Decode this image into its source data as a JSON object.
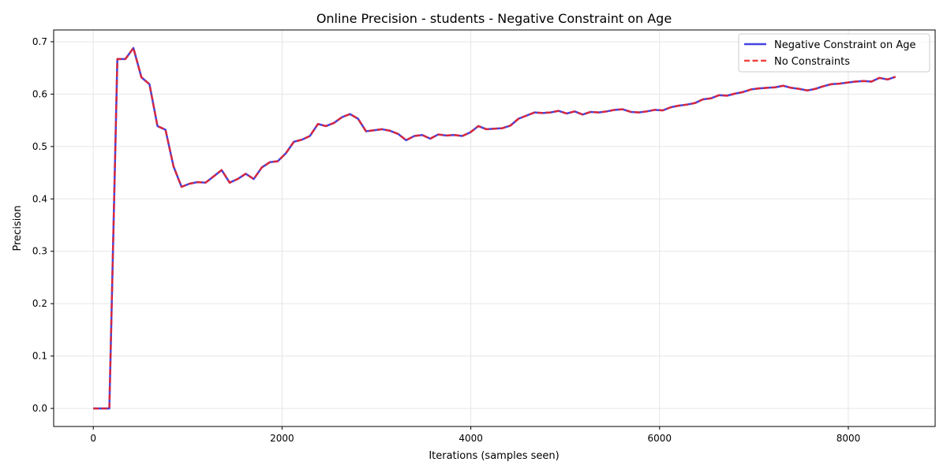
{
  "chart_data": {
    "type": "line",
    "title": "Online Precision - students - Negative Constraint on Age",
    "xlabel": "Iterations (samples seen)",
    "ylabel": "Precision",
    "xlim": [
      -420,
      8920
    ],
    "ylim": [
      -0.0345,
      0.7225
    ],
    "xticks": [
      0,
      2000,
      4000,
      6000,
      8000
    ],
    "xtick_labels": [
      "0",
      "2000",
      "4000",
      "6000",
      "8000"
    ],
    "yticks": [
      0.0,
      0.1,
      0.2,
      0.3,
      0.4,
      0.5,
      0.6,
      0.7
    ],
    "ytick_labels": [
      "0.0",
      "0.1",
      "0.2",
      "0.3",
      "0.4",
      "0.5",
      "0.6",
      "0.7"
    ],
    "grid": true,
    "legend_position": "top-right",
    "x": [
      0,
      85,
      170,
      255,
      340,
      425,
      510,
      595,
      680,
      765,
      850,
      935,
      1020,
      1105,
      1190,
      1275,
      1360,
      1445,
      1530,
      1615,
      1700,
      1785,
      1870,
      1955,
      2040,
      2125,
      2210,
      2295,
      2380,
      2465,
      2550,
      2635,
      2720,
      2805,
      2890,
      2975,
      3060,
      3145,
      3230,
      3315,
      3400,
      3485,
      3570,
      3655,
      3740,
      3825,
      3910,
      3995,
      4080,
      4165,
      4250,
      4335,
      4420,
      4505,
      4590,
      4675,
      4760,
      4845,
      4930,
      5015,
      5100,
      5185,
      5270,
      5355,
      5440,
      5525,
      5610,
      5695,
      5780,
      5865,
      5950,
      6035,
      6120,
      6205,
      6290,
      6375,
      6460,
      6545,
      6630,
      6715,
      6800,
      6885,
      6970,
      7055,
      7140,
      7225,
      7310,
      7395,
      7480,
      7565,
      7650,
      7735,
      7820,
      7905,
      7990,
      8075,
      8160,
      8245,
      8330,
      8415,
      8500
    ],
    "series": [
      {
        "name": "Negative Constraint on Age",
        "color": "#2222dd",
        "style": "solid",
        "values": [
          0.0,
          0.0,
          0.0,
          0.667,
          0.667,
          0.688,
          0.632,
          0.619,
          0.539,
          0.532,
          0.462,
          0.423,
          0.429,
          0.432,
          0.431,
          0.443,
          0.455,
          0.431,
          0.438,
          0.448,
          0.438,
          0.46,
          0.47,
          0.472,
          0.487,
          0.509,
          0.513,
          0.52,
          0.543,
          0.539,
          0.545,
          0.556,
          0.562,
          0.553,
          0.529,
          0.531,
          0.533,
          0.53,
          0.524,
          0.512,
          0.52,
          0.522,
          0.515,
          0.523,
          0.521,
          0.522,
          0.52,
          0.527,
          0.539,
          0.533,
          0.534,
          0.535,
          0.54,
          0.553,
          0.559,
          0.565,
          0.564,
          0.565,
          0.568,
          0.563,
          0.567,
          0.561,
          0.566,
          0.565,
          0.567,
          0.57,
          0.571,
          0.566,
          0.565,
          0.567,
          0.57,
          0.569,
          0.575,
          0.578,
          0.58,
          0.583,
          0.59,
          0.592,
          0.598,
          0.597,
          0.601,
          0.604,
          0.609,
          0.611,
          0.612,
          0.613,
          0.616,
          0.612,
          0.61,
          0.607,
          0.61,
          0.615,
          0.619,
          0.62,
          0.622,
          0.624,
          0.625,
          0.624,
          0.631,
          0.628,
          0.633
        ]
      },
      {
        "name": "No Constraints",
        "color": "#ee2222",
        "style": "dashed",
        "values": [
          0.0,
          0.0,
          0.0,
          0.667,
          0.667,
          0.688,
          0.632,
          0.619,
          0.539,
          0.532,
          0.462,
          0.423,
          0.429,
          0.432,
          0.431,
          0.443,
          0.455,
          0.431,
          0.438,
          0.448,
          0.438,
          0.46,
          0.47,
          0.472,
          0.487,
          0.509,
          0.513,
          0.52,
          0.543,
          0.539,
          0.545,
          0.556,
          0.562,
          0.553,
          0.529,
          0.531,
          0.533,
          0.53,
          0.524,
          0.512,
          0.52,
          0.522,
          0.515,
          0.523,
          0.521,
          0.522,
          0.52,
          0.527,
          0.539,
          0.533,
          0.534,
          0.535,
          0.54,
          0.553,
          0.559,
          0.565,
          0.564,
          0.565,
          0.568,
          0.563,
          0.567,
          0.561,
          0.566,
          0.565,
          0.567,
          0.57,
          0.571,
          0.566,
          0.565,
          0.567,
          0.57,
          0.569,
          0.575,
          0.578,
          0.58,
          0.583,
          0.59,
          0.592,
          0.598,
          0.597,
          0.601,
          0.604,
          0.609,
          0.611,
          0.612,
          0.613,
          0.616,
          0.612,
          0.61,
          0.607,
          0.61,
          0.615,
          0.619,
          0.62,
          0.622,
          0.624,
          0.625,
          0.624,
          0.631,
          0.628,
          0.633
        ]
      }
    ]
  }
}
